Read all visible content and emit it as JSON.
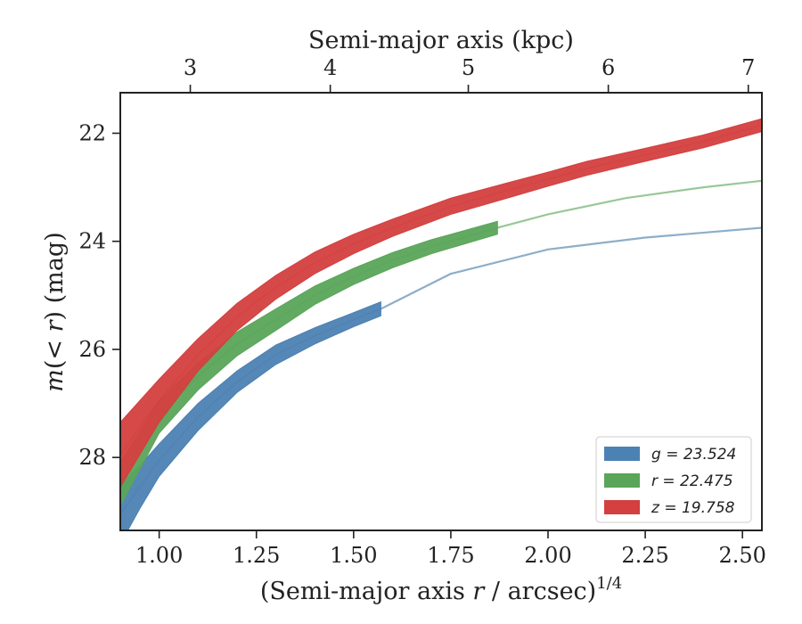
{
  "chart_data": {
    "type": "area",
    "xlabel_parts": [
      "(Semi-major axis ",
      "r",
      " / arcsec)",
      "1/4"
    ],
    "ylabel_parts": [
      "m",
      "(< ",
      "r",
      ") (mag)"
    ],
    "top_xlabel": "Semi-major axis (kpc)",
    "xlim": [
      0.9,
      2.55
    ],
    "ylim": [
      29.35,
      21.25
    ],
    "y_inverted": true,
    "grid": false,
    "legend_position": "lower-right",
    "x_ticks": [
      1.0,
      1.25,
      1.5,
      1.75,
      2.0,
      2.25,
      2.5
    ],
    "x_tick_labels": [
      "1.00",
      "1.25",
      "1.50",
      "1.75",
      "2.00",
      "2.25",
      "2.50"
    ],
    "y_ticks": [
      22,
      24,
      26,
      28
    ],
    "y_tick_labels": [
      "22",
      "24",
      "26",
      "28"
    ],
    "top_ticks_x": [
      1.08,
      1.44,
      1.795,
      2.155,
      2.515
    ],
    "top_tick_labels": [
      "3",
      "4",
      "5",
      "6",
      "7"
    ],
    "series": [
      {
        "name": "g = 23.524",
        "band": "g",
        "value": "23.524",
        "color": "#4c81b3",
        "line_color": "#8eaec8",
        "x": [
          0.9,
          0.95,
          1.0,
          1.1,
          1.2,
          1.3,
          1.4,
          1.5,
          1.57
        ],
        "y": [
          29.05,
          28.55,
          28.05,
          27.25,
          26.6,
          26.1,
          25.75,
          25.45,
          25.25
        ],
        "band_halfwidth": [
          0.55,
          0.4,
          0.3,
          0.25,
          0.2,
          0.18,
          0.15,
          0.13,
          0.13
        ],
        "tail_x": [
          1.57,
          1.75,
          2.0,
          2.25,
          2.55
        ],
        "tail_y": [
          25.25,
          24.6,
          24.15,
          23.93,
          23.75
        ]
      },
      {
        "name": "r = 22.475",
        "band": "r",
        "value": "22.475",
        "color": "#5aa55a",
        "line_color": "#98c898",
        "x": [
          0.9,
          1.0,
          1.1,
          1.2,
          1.3,
          1.4,
          1.5,
          1.6,
          1.7,
          1.87
        ],
        "y": [
          28.5,
          27.25,
          26.5,
          25.9,
          25.45,
          25.0,
          24.65,
          24.35,
          24.1,
          23.75
        ],
        "band_halfwidth": [
          0.4,
          0.3,
          0.25,
          0.22,
          0.2,
          0.17,
          0.15,
          0.14,
          0.13,
          0.12
        ],
        "tail_x": [
          1.87,
          2.0,
          2.2,
          2.4,
          2.55
        ],
        "tail_y": [
          23.75,
          23.5,
          23.2,
          23.0,
          22.88
        ]
      },
      {
        "name": "z = 19.758",
        "band": "z",
        "value": "19.758",
        "color": "#d43f3f",
        "line_color": "#d43f3f",
        "x": [
          0.9,
          1.0,
          1.1,
          1.2,
          1.3,
          1.4,
          1.5,
          1.6,
          1.75,
          1.9,
          2.0,
          2.1,
          2.25,
          2.4,
          2.55
        ],
        "y": [
          27.95,
          26.95,
          26.1,
          25.4,
          24.85,
          24.4,
          24.05,
          23.75,
          23.35,
          23.05,
          22.85,
          22.65,
          22.4,
          22.15,
          21.85
        ],
        "band_halfwidth": [
          0.6,
          0.4,
          0.3,
          0.25,
          0.22,
          0.2,
          0.18,
          0.16,
          0.15,
          0.14,
          0.13,
          0.13,
          0.12,
          0.12,
          0.12
        ],
        "tail_x": [],
        "tail_y": []
      }
    ]
  }
}
